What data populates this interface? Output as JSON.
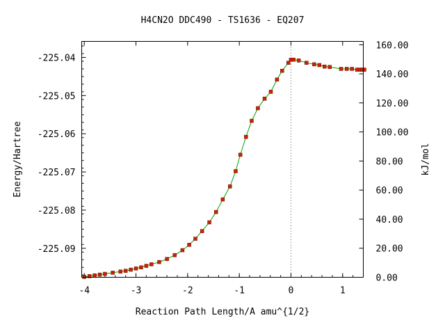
{
  "chart_data": {
    "type": "line",
    "title": "H4CN2O   DDC490 - TS1636 - EQ207",
    "xlabel": "Reaction Path Length/A amu^{1/2}",
    "ylabel": "Energy/Hartree",
    "y2label": "kJ/mol",
    "xlim": [
      -4.05,
      1.4
    ],
    "ylim": [
      -225.0976,
      -225.0358
    ],
    "y2lim": [
      0,
      162.3
    ],
    "x_ticks": [
      -4,
      -3,
      -2,
      -1,
      0,
      1
    ],
    "x_tick_labels": [
      "-4",
      "-3",
      "-2",
      "-1",
      "0",
      "1"
    ],
    "y_ticks": [
      -225.04,
      -225.05,
      -225.06,
      -225.07,
      -225.08,
      -225.09
    ],
    "y_tick_labels": [
      "-225.04",
      "-225.05",
      "-225.06",
      "-225.07",
      "-225.08",
      "-225.09"
    ],
    "y2_ticks": [
      0,
      20,
      40,
      60,
      80,
      100,
      120,
      140,
      160
    ],
    "y2_tick_labels": [
      "0.00",
      "20.00",
      "40.00",
      "60.00",
      "80.00",
      "100.00",
      "120.00",
      "140.00",
      "160.00"
    ],
    "ts_marker_x": 0,
    "grid": false,
    "line_color": "#00a000",
    "marker_color": "#cc2200",
    "x": [
      -4.0,
      -3.9,
      -3.8,
      -3.7,
      -3.6,
      -3.45,
      -3.3,
      -3.2,
      -3.1,
      -3.0,
      -2.9,
      -2.8,
      -2.7,
      -2.55,
      -2.4,
      -2.25,
      -2.1,
      -1.97,
      -1.85,
      -1.72,
      -1.58,
      -1.45,
      -1.32,
      -1.18,
      -1.07,
      -0.98,
      -0.87,
      -0.76,
      -0.64,
      -0.51,
      -0.39,
      -0.27,
      -0.17,
      -0.05,
      0.0,
      0.05,
      0.15,
      0.3,
      0.45,
      0.55,
      0.65,
      0.75,
      0.97,
      1.08,
      1.18,
      1.28,
      1.34,
      1.38,
      1.42
    ],
    "y": [
      -225.0975,
      -225.0973,
      -225.0971,
      -225.0969,
      -225.0967,
      -225.0964,
      -225.0961,
      -225.0959,
      -225.0956,
      -225.0953,
      -225.095,
      -225.0946,
      -225.0942,
      -225.0936,
      -225.0928,
      -225.0918,
      -225.0905,
      -225.0891,
      -225.0875,
      -225.0855,
      -225.0832,
      -225.0805,
      -225.0772,
      -225.0738,
      -225.0698,
      -225.0655,
      -225.0608,
      -225.0566,
      -225.0533,
      -225.0508,
      -225.049,
      -225.0458,
      -225.0435,
      -225.0414,
      -225.0406,
      -225.0406,
      -225.0408,
      -225.0414,
      -225.0418,
      -225.042,
      -225.0424,
      -225.0425,
      -225.043,
      -225.043,
      -225.043,
      -225.0432,
      -225.0432,
      -225.0432,
      -225.0432
    ]
  }
}
